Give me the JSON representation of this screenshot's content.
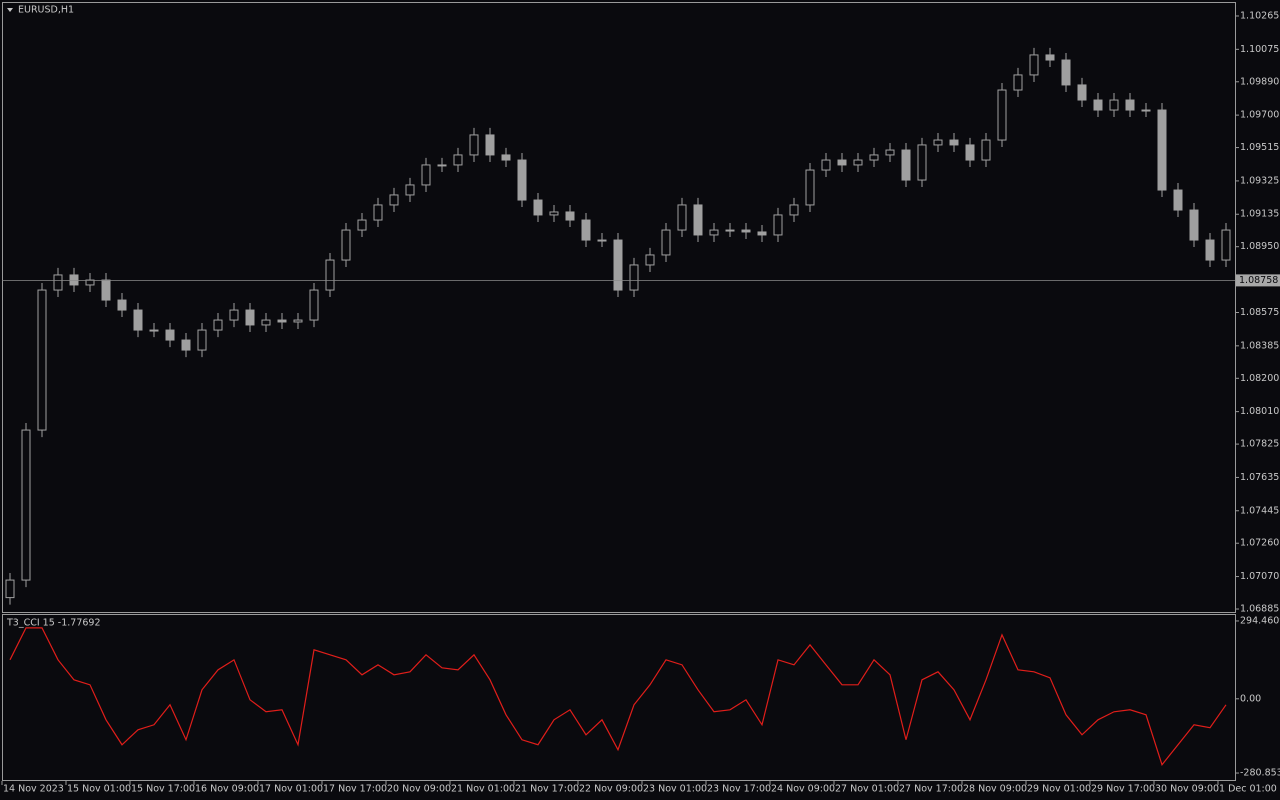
{
  "chart_data": [
    {
      "type": "candlestick",
      "title": "EURUSD,H1",
      "color": "#a0a0a0",
      "body_fill": "#0a0a0e",
      "categories": [
        "14 Nov 2023",
        null,
        null,
        null,
        "15 Nov 01:00",
        null,
        null,
        null,
        "15 Nov 17:00",
        null,
        null,
        null,
        "16 Nov 09:00",
        null,
        null,
        null,
        "17 Nov 01:00",
        null,
        null,
        null,
        "17 Nov 17:00",
        null,
        null,
        null,
        "20 Nov 09:00",
        null,
        null,
        null,
        "21 Nov 01:00",
        null,
        null,
        null,
        "21 Nov 17:00",
        null,
        null,
        null,
        "22 Nov 09:00",
        null,
        null,
        null,
        "23 Nov 01:00",
        null,
        null,
        null,
        "23 Nov 17:00",
        null,
        null,
        null,
        "24 Nov 09:00",
        null,
        null,
        null,
        "27 Nov 01:00",
        null,
        null,
        null,
        "27 Nov 17:00",
        null,
        null,
        null,
        "28 Nov 09:00",
        null,
        null,
        null,
        "29 Nov 01:00",
        null,
        null,
        null,
        "29 Nov 17:00",
        null,
        null,
        null,
        "30 Nov 09:00",
        null,
        null,
        null,
        "1 Dec 01:00"
      ],
      "values": [
        [
          1.0695,
          1.0709,
          1.0691,
          1.0705
        ],
        [
          1.0705,
          1.07945,
          1.0701,
          1.07905
        ],
        [
          1.07905,
          1.08743,
          1.07865,
          1.08703
        ],
        [
          1.08703,
          1.08829,
          1.08663,
          1.08789
        ],
        [
          1.08789,
          1.08829,
          1.08692,
          1.08732
        ],
        [
          1.08732,
          1.088,
          1.08692,
          1.0876
        ],
        [
          1.0876,
          1.088,
          1.08606,
          1.08646
        ],
        [
          1.08646,
          1.08686,
          1.08549,
          1.08589
        ],
        [
          1.08589,
          1.08629,
          1.08435,
          1.08475
        ],
        [
          1.08475,
          1.08515,
          1.08435,
          1.08475
        ],
        [
          1.08475,
          1.08515,
          1.08378,
          1.08418
        ],
        [
          1.08418,
          1.08458,
          1.08321,
          1.08361
        ],
        [
          1.08361,
          1.08515,
          1.08321,
          1.08475
        ],
        [
          1.08475,
          1.08572,
          1.08435,
          1.08532
        ],
        [
          1.08532,
          1.08629,
          1.08492,
          1.08589
        ],
        [
          1.08589,
          1.08629,
          1.08464,
          1.08504
        ],
        [
          1.08504,
          1.08572,
          1.08464,
          1.08532
        ],
        [
          1.08532,
          1.08572,
          1.08481,
          1.08521
        ],
        [
          1.08521,
          1.08572,
          1.08481,
          1.08532
        ],
        [
          1.08532,
          1.08743,
          1.08492,
          1.08703
        ],
        [
          1.08703,
          1.08914,
          1.08663,
          1.08874
        ],
        [
          1.08874,
          1.09085,
          1.08834,
          1.09045
        ],
        [
          1.09045,
          1.09142,
          1.09005,
          1.09102
        ],
        [
          1.09102,
          1.09228,
          1.09062,
          1.09188
        ],
        [
          1.09188,
          1.09285,
          1.09148,
          1.09245
        ],
        [
          1.09245,
          1.09342,
          1.09205,
          1.09302
        ],
        [
          1.09302,
          1.09456,
          1.09262,
          1.09416
        ],
        [
          1.09416,
          1.09456,
          1.09376,
          1.09416
        ],
        [
          1.09416,
          1.09513,
          1.09376,
          1.09473
        ],
        [
          1.09473,
          1.09627,
          1.09433,
          1.09587
        ],
        [
          1.09587,
          1.09627,
          1.09433,
          1.09473
        ],
        [
          1.09473,
          1.09513,
          1.09404,
          1.09444
        ],
        [
          1.09444,
          1.09484,
          1.09176,
          1.09216
        ],
        [
          1.09216,
          1.09256,
          1.09091,
          1.09131
        ],
        [
          1.09131,
          1.09188,
          1.09091,
          1.09148
        ],
        [
          1.09148,
          1.09188,
          1.09062,
          1.09102
        ],
        [
          1.09102,
          1.09142,
          1.08948,
          1.08988
        ],
        [
          1.08988,
          1.09028,
          1.08948,
          1.08988
        ],
        [
          1.08988,
          1.09028,
          1.08663,
          1.08703
        ],
        [
          1.08703,
          1.08886,
          1.08663,
          1.08846
        ],
        [
          1.08846,
          1.08943,
          1.08806,
          1.08903
        ],
        [
          1.08903,
          1.09085,
          1.08863,
          1.09045
        ],
        [
          1.09045,
          1.09228,
          1.09005,
          1.09188
        ],
        [
          1.09188,
          1.09228,
          1.08977,
          1.09017
        ],
        [
          1.09017,
          1.09085,
          1.08977,
          1.09045
        ],
        [
          1.09045,
          1.09085,
          1.09005,
          1.09045
        ],
        [
          1.09045,
          1.09085,
          1.08994,
          1.09034
        ],
        [
          1.09034,
          1.09074,
          1.08977,
          1.09017
        ],
        [
          1.09017,
          1.09171,
          1.08977,
          1.09131
        ],
        [
          1.09131,
          1.09228,
          1.09091,
          1.09188
        ],
        [
          1.09188,
          1.09427,
          1.09148,
          1.09387
        ],
        [
          1.09387,
          1.09484,
          1.09347,
          1.09444
        ],
        [
          1.09444,
          1.09484,
          1.09376,
          1.09416
        ],
        [
          1.09416,
          1.09484,
          1.09376,
          1.09444
        ],
        [
          1.09444,
          1.09513,
          1.09404,
          1.09473
        ],
        [
          1.09473,
          1.09541,
          1.09433,
          1.09501
        ],
        [
          1.09501,
          1.09541,
          1.0929,
          1.0933
        ],
        [
          1.0933,
          1.0957,
          1.0929,
          1.0953
        ],
        [
          1.0953,
          1.09598,
          1.0949,
          1.09558
        ],
        [
          1.09558,
          1.09598,
          1.0949,
          1.0953
        ],
        [
          1.0953,
          1.0957,
          1.09404,
          1.09444
        ],
        [
          1.09444,
          1.09598,
          1.09404,
          1.09558
        ],
        [
          1.09558,
          1.09883,
          1.09518,
          1.09843
        ],
        [
          1.09843,
          1.09969,
          1.09803,
          1.09929
        ],
        [
          1.09929,
          1.10083,
          1.09889,
          1.10043
        ],
        [
          1.10043,
          1.10083,
          1.09974,
          1.10014
        ],
        [
          1.10014,
          1.10054,
          1.09832,
          1.09872
        ],
        [
          1.09872,
          1.09912,
          1.09746,
          1.09786
        ],
        [
          1.09786,
          1.09826,
          1.09689,
          1.09729
        ],
        [
          1.09729,
          1.09826,
          1.09689,
          1.09786
        ],
        [
          1.09786,
          1.09826,
          1.09689,
          1.09729
        ],
        [
          1.09729,
          1.09769,
          1.09689,
          1.09729
        ],
        [
          1.09729,
          1.09769,
          1.09233,
          1.09273
        ],
        [
          1.09273,
          1.09313,
          1.09119,
          1.09159
        ],
        [
          1.09159,
          1.09199,
          1.08948,
          1.08988
        ],
        [
          1.08988,
          1.09028,
          1.08834,
          1.08874
        ],
        [
          1.08874,
          1.09085,
          1.08834,
          1.09045
        ]
      ],
      "ylim": [
        1.06868,
        1.10339
      ],
      "yticks": [
        1.10265,
        1.10075,
        {
          "value": 1.0989,
          "label": "1.09890"
        },
        {
          "value": 1.097,
          "label": "1.09700"
        },
        1.09515,
        1.09325,
        1.09135,
        {
          "value": 1.0895,
          "label": "1.08950"
        },
        1.08575,
        1.08385,
        {
          "value": 1.082,
          "label": "1.08200"
        },
        {
          "value": 1.0801,
          "label": "1.08010"
        },
        1.07825,
        1.07635,
        1.07445,
        {
          "value": 1.0726,
          "label": "1.07260"
        },
        {
          "value": 1.0707,
          "label": "1.07070"
        },
        1.06885
      ],
      "current_price": 1.08758
    },
    {
      "type": "line",
      "title": "T3_CCI 15 -1.77692",
      "color": "#e01e1a",
      "values": [
        147.4,
        268.4,
        268.4,
        147.4,
        71.8,
        52.9,
        -79.4,
        -173.9,
        -117.2,
        -98.3,
        -22.7,
        -155.0,
        34.0,
        109.6,
        147.4,
        -3.8,
        -49.1,
        -41.6,
        -173.9,
        185.2,
        166.3,
        147.4,
        90.7,
        128.5,
        90.7,
        102.1,
        166.3,
        117.2,
        109.6,
        166.3,
        71.8,
        -60.5,
        -155.0,
        -173.9,
        -79.4,
        -41.6,
        -136.1,
        -79.4,
        -192.8,
        -22.7,
        52.9,
        147.4,
        128.5,
        34.0,
        -49.1,
        -41.6,
        -3.8,
        -98.3,
        147.4,
        128.5,
        204.1,
        128.5,
        52.9,
        52.9,
        147.4,
        90.7,
        -155.0,
        71.8,
        102.1,
        34.0,
        -79.4,
        71.8,
        241.9,
        109.6,
        102.1,
        79.4,
        -60.5,
        -136.1,
        -79.4,
        -49.1,
        -41.6,
        -60.5,
        -249.5,
        -173.9,
        -98.3,
        -109.6,
        -22.7
      ],
      "ylim": [
        -311,
        317
      ],
      "yticks": [
        294.46092,
        {
          "value": 0,
          "label": "0.00"
        },
        -280.8536
      ]
    }
  ]
}
